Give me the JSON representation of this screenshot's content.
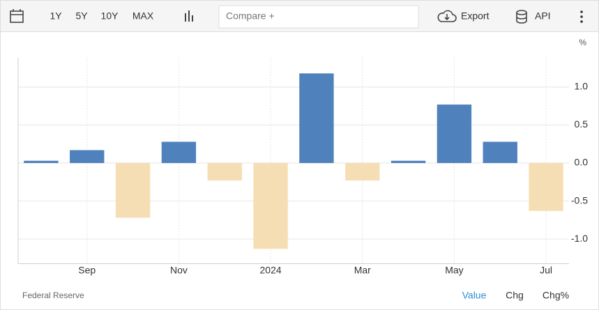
{
  "toolbar": {
    "ranges": [
      "1Y",
      "5Y",
      "10Y",
      "MAX"
    ],
    "compare": "Compare +",
    "export": "Export",
    "api": "API"
  },
  "chart_data": {
    "type": "bar",
    "unit": "%",
    "categories": [
      null,
      "Sep",
      null,
      "Nov",
      null,
      "2024",
      null,
      "Mar",
      null,
      "May",
      null,
      "Jul"
    ],
    "values": [
      0.03,
      0.17,
      -0.72,
      0.28,
      -0.23,
      -1.13,
      1.18,
      -0.23,
      0.03,
      0.77,
      0.28,
      -0.63
    ],
    "color": "#4f81bd",
    "negative_color": "#f6deb4",
    "ylim": [
      -1.32,
      1.385
    ],
    "yticks": [
      {
        "value": -1,
        "label": "-1.0"
      },
      {
        "value": -0.5,
        "label": "-0.5"
      },
      {
        "value": 0,
        "label": "0.0"
      },
      {
        "value": 0.5,
        "label": "0.5"
      },
      {
        "value": 1,
        "label": "1.0"
      }
    ],
    "grid": true
  },
  "footer": {
    "source": "Federal Reserve",
    "views": [
      "Value",
      "Chg",
      "Chg%"
    ]
  }
}
